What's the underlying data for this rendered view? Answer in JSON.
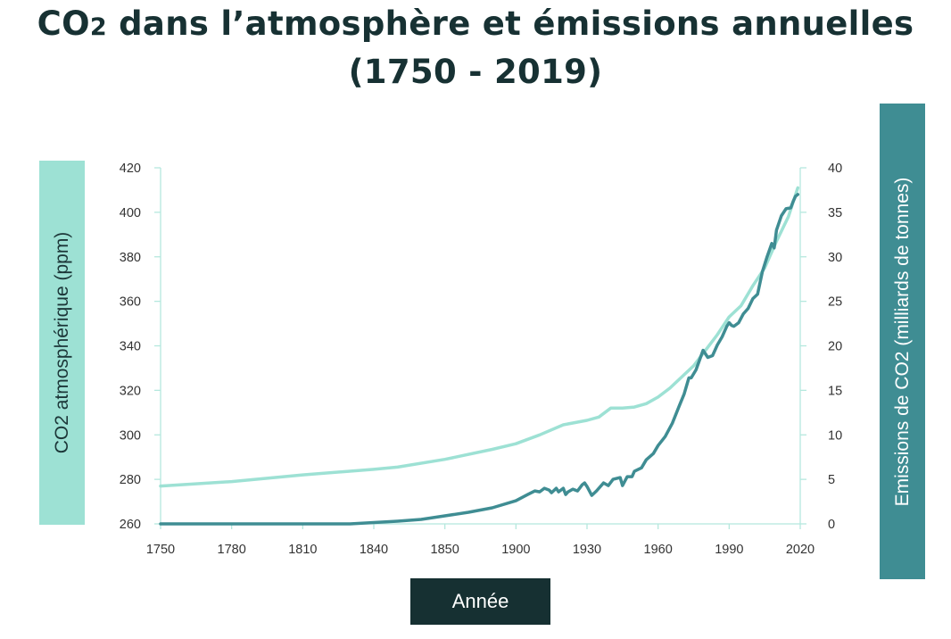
{
  "title": {
    "line1_a": "CO",
    "line1_sub": "2",
    "line1_b": " dans l’atmosphère et émissions annuelles",
    "line2": "(1750 - 2019)"
  },
  "chart_data": {
    "type": "line",
    "title": "CO2 dans l’atmosphère et émissions annuelles (1750 - 2019)",
    "xlabel": "Année",
    "ylabel_left": "CO2 atmosphérique (ppm)",
    "ylabel_right": "Emissions de CO2 (milliards de tonnes)",
    "xlim": [
      1750,
      2020
    ],
    "ylim_left": [
      260,
      420
    ],
    "ylim_right": [
      0,
      40
    ],
    "x_ticks": [
      "1750",
      "1780",
      "1810",
      "1840",
      "1850",
      "1900",
      "1930",
      "1960",
      "1990",
      "2020"
    ],
    "y_ticks_left": [
      260,
      280,
      300,
      320,
      340,
      360,
      380,
      400,
      420
    ],
    "y_ticks_right": [
      0,
      5,
      10,
      15,
      20,
      25,
      30,
      35,
      40
    ],
    "grid": false,
    "series": [
      {
        "name": "CO2 atmosphérique (ppm)",
        "axis": "left",
        "color": "#9de1d4",
        "points": [
          [
            1750,
            277
          ],
          [
            1780,
            279
          ],
          [
            1810,
            282
          ],
          [
            1840,
            284.5
          ],
          [
            1850,
            285.5
          ],
          [
            1870,
            289
          ],
          [
            1890,
            293.5
          ],
          [
            1900,
            296
          ],
          [
            1910,
            300
          ],
          [
            1920,
            304.5
          ],
          [
            1930,
            306.5
          ],
          [
            1935,
            308
          ],
          [
            1940,
            312
          ],
          [
            1945,
            312
          ],
          [
            1950,
            312.5
          ],
          [
            1955,
            314
          ],
          [
            1960,
            317
          ],
          [
            1965,
            321
          ],
          [
            1970,
            326
          ],
          [
            1975,
            331
          ],
          [
            1980,
            338
          ],
          [
            1985,
            345
          ],
          [
            1990,
            353
          ],
          [
            1995,
            358
          ],
          [
            2000,
            367
          ],
          [
            2005,
            375
          ],
          [
            2010,
            387
          ],
          [
            2015,
            398
          ],
          [
            2019,
            411
          ]
        ]
      },
      {
        "name": "Emissions de CO2 (milliards de tonnes)",
        "axis": "right",
        "color": "#3f8d93",
        "points": [
          [
            1750,
            0
          ],
          [
            1780,
            0
          ],
          [
            1810,
            0
          ],
          [
            1830,
            0
          ],
          [
            1850,
            0.3
          ],
          [
            1860,
            0.5
          ],
          [
            1870,
            0.9
          ],
          [
            1880,
            1.3
          ],
          [
            1890,
            1.8
          ],
          [
            1900,
            2.6
          ],
          [
            1905,
            3.3
          ],
          [
            1908,
            3.7
          ],
          [
            1910,
            3.6
          ],
          [
            1912,
            4
          ],
          [
            1914,
            3.8
          ],
          [
            1915,
            3.5
          ],
          [
            1917,
            4
          ],
          [
            1918,
            3.6
          ],
          [
            1920,
            4.0
          ],
          [
            1921,
            3.3
          ],
          [
            1922,
            3.6
          ],
          [
            1924,
            3.9
          ],
          [
            1926,
            3.7
          ],
          [
            1928,
            4.4
          ],
          [
            1929,
            4.6
          ],
          [
            1930,
            4.2
          ],
          [
            1932,
            3.2
          ],
          [
            1934,
            3.7
          ],
          [
            1936,
            4.3
          ],
          [
            1937,
            4.6
          ],
          [
            1939,
            4.3
          ],
          [
            1941,
            5
          ],
          [
            1944,
            5.2
          ],
          [
            1945,
            4.3
          ],
          [
            1947,
            5.3
          ],
          [
            1949,
            5.3
          ],
          [
            1950,
            5.9
          ],
          [
            1953,
            6.3
          ],
          [
            1955,
            7.2
          ],
          [
            1958,
            7.9
          ],
          [
            1960,
            8.8
          ],
          [
            1963,
            9.8
          ],
          [
            1966,
            11.3
          ],
          [
            1969,
            13.3
          ],
          [
            1971,
            14.6
          ],
          [
            1973,
            16.4
          ],
          [
            1974,
            16.4
          ],
          [
            1976,
            17.3
          ],
          [
            1979,
            19.5
          ],
          [
            1981,
            18.7
          ],
          [
            1983,
            18.9
          ],
          [
            1985,
            20.1
          ],
          [
            1987,
            21
          ],
          [
            1989,
            22.2
          ],
          [
            1990,
            22.6
          ],
          [
            1991,
            22.3
          ],
          [
            1992,
            22.2
          ],
          [
            1994,
            22.6
          ],
          [
            1996,
            23.6
          ],
          [
            1998,
            24.2
          ],
          [
            2000,
            25.3
          ],
          [
            2002,
            25.8
          ],
          [
            2004,
            28.3
          ],
          [
            2006,
            30
          ],
          [
            2008,
            31.5
          ],
          [
            2009,
            31
          ],
          [
            2010,
            33
          ],
          [
            2012,
            34.6
          ],
          [
            2014,
            35.4
          ],
          [
            2016,
            35.5
          ],
          [
            2017,
            36.2
          ],
          [
            2018,
            36.8
          ],
          [
            2019,
            37
          ]
        ]
      }
    ]
  }
}
